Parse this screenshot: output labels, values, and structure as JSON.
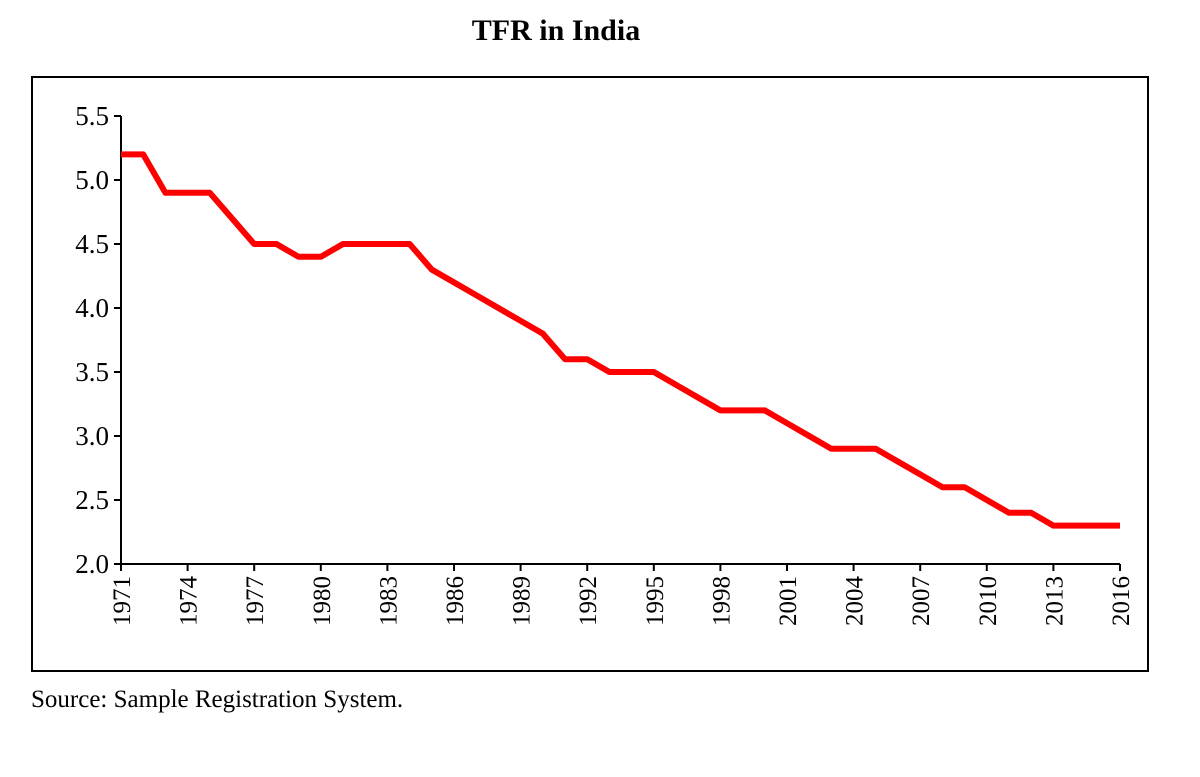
{
  "chart_data": {
    "type": "line",
    "title": "TFR in India",
    "xlabel": "",
    "ylabel": "",
    "x": [
      1971,
      1972,
      1973,
      1974,
      1975,
      1976,
      1977,
      1978,
      1979,
      1980,
      1981,
      1982,
      1983,
      1984,
      1985,
      1986,
      1987,
      1988,
      1989,
      1990,
      1991,
      1992,
      1993,
      1994,
      1995,
      1996,
      1997,
      1998,
      1999,
      2000,
      2001,
      2002,
      2003,
      2004,
      2005,
      2006,
      2007,
      2008,
      2009,
      2010,
      2011,
      2012,
      2013,
      2014,
      2015,
      2016
    ],
    "series": [
      {
        "name": "",
        "color": "#ff0000",
        "values": [
          5.2,
          5.2,
          4.9,
          4.9,
          4.9,
          4.7,
          4.5,
          4.5,
          4.4,
          4.4,
          4.5,
          4.5,
          4.5,
          4.5,
          4.3,
          4.2,
          4.1,
          4.0,
          3.9,
          3.8,
          3.6,
          3.6,
          3.5,
          3.5,
          3.5,
          3.4,
          3.3,
          3.2,
          3.2,
          3.2,
          3.1,
          3.0,
          2.9,
          2.9,
          2.9,
          2.8,
          2.7,
          2.6,
          2.6,
          2.5,
          2.4,
          2.4,
          2.3,
          2.3,
          2.3,
          2.3
        ]
      }
    ],
    "xticks": [
      "1971",
      "1974",
      "1977",
      "1980",
      "1983",
      "1986",
      "1989",
      "1992",
      "1995",
      "1998",
      "2001",
      "2004",
      "2007",
      "2010",
      "2013",
      "2016"
    ],
    "xtick_values": [
      1971,
      1974,
      1977,
      1980,
      1983,
      1986,
      1989,
      1992,
      1995,
      1998,
      2001,
      2004,
      2007,
      2010,
      2013,
      2016
    ],
    "yticks": [
      "2.0",
      "2.5",
      "3.0",
      "3.5",
      "4.0",
      "4.5",
      "5.0",
      "5.5"
    ],
    "ytick_values": [
      2.0,
      2.5,
      3.0,
      3.5,
      4.0,
      4.5,
      5.0,
      5.5
    ],
    "xlim": [
      1971,
      2016
    ],
    "ylim": [
      2.0,
      5.5
    ],
    "grid": false,
    "legend": "none"
  },
  "source_note": "Source: Sample Registration System."
}
